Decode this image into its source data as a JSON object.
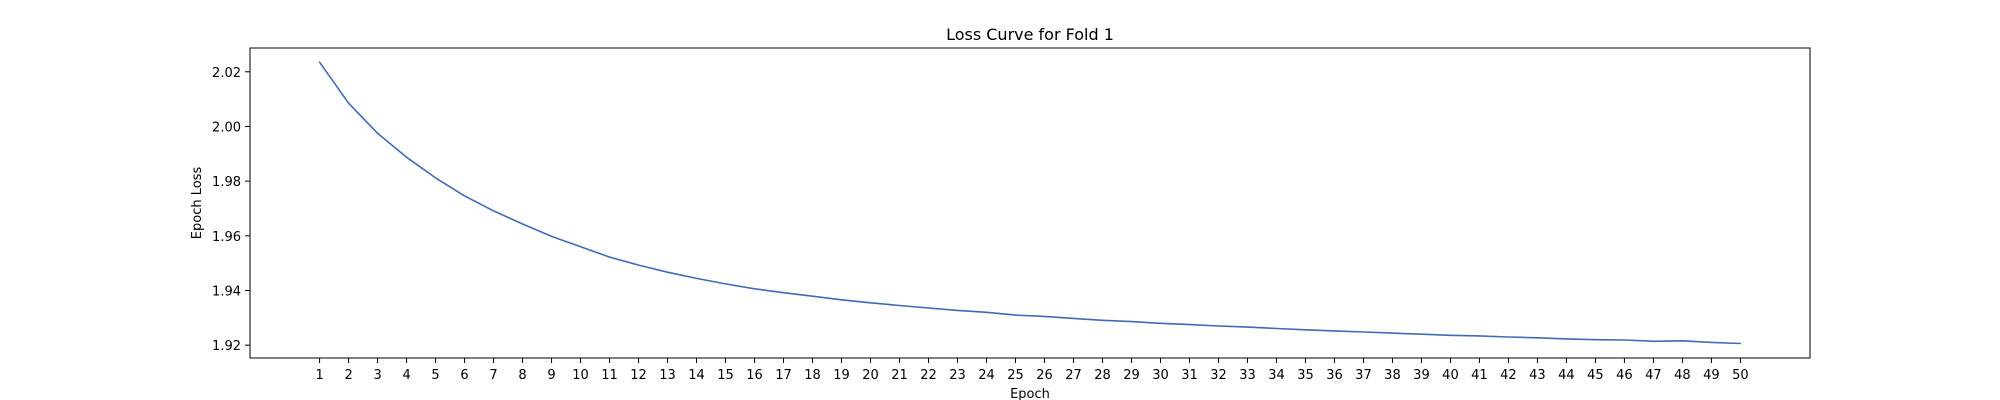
{
  "chart_data": {
    "type": "line",
    "title": "Loss Curve for Fold 1",
    "xlabel": "Epoch",
    "ylabel": "Epoch Loss",
    "x": [
      1,
      2,
      3,
      4,
      5,
      6,
      7,
      8,
      9,
      10,
      11,
      12,
      13,
      14,
      15,
      16,
      17,
      18,
      19,
      20,
      21,
      22,
      23,
      24,
      25,
      26,
      27,
      28,
      29,
      30,
      31,
      32,
      33,
      34,
      35,
      36,
      37,
      38,
      39,
      40,
      41,
      42,
      43,
      44,
      45,
      46,
      47,
      48,
      49,
      50
    ],
    "xticks": [
      "1",
      "2",
      "3",
      "4",
      "5",
      "6",
      "7",
      "8",
      "9",
      "10",
      "11",
      "12",
      "13",
      "14",
      "15",
      "16",
      "17",
      "18",
      "19",
      "20",
      "21",
      "22",
      "23",
      "24",
      "25",
      "26",
      "27",
      "28",
      "29",
      "30",
      "31",
      "32",
      "33",
      "34",
      "35",
      "36",
      "37",
      "38",
      "39",
      "40",
      "41",
      "42",
      "43",
      "44",
      "45",
      "46",
      "47",
      "48",
      "49",
      "50"
    ],
    "yticks": [
      "1.92",
      "1.94",
      "1.96",
      "1.98",
      "2.00",
      "2.02"
    ],
    "xlim": [
      -1.4,
      52.4
    ],
    "ylim": [
      1.9153,
      2.0287
    ],
    "series": [
      {
        "color": "#4169b8",
        "values": [
          2.0235,
          2.0085,
          1.9975,
          1.9887,
          1.9812,
          1.9746,
          1.9691,
          1.9643,
          1.9598,
          1.956,
          1.9522,
          1.9493,
          1.9467,
          1.9444,
          1.9424,
          1.9406,
          1.9392,
          1.9379,
          1.9366,
          1.9355,
          1.9345,
          1.9336,
          1.9327,
          1.932,
          1.931,
          1.9305,
          1.9298,
          1.9291,
          1.9286,
          1.928,
          1.9275,
          1.927,
          1.9266,
          1.9261,
          1.9256,
          1.9252,
          1.9248,
          1.9244,
          1.924,
          1.9236,
          1.9234,
          1.923,
          1.9227,
          1.9223,
          1.922,
          1.9219,
          1.9214,
          1.9216,
          1.921,
          1.9206
        ]
      }
    ]
  }
}
